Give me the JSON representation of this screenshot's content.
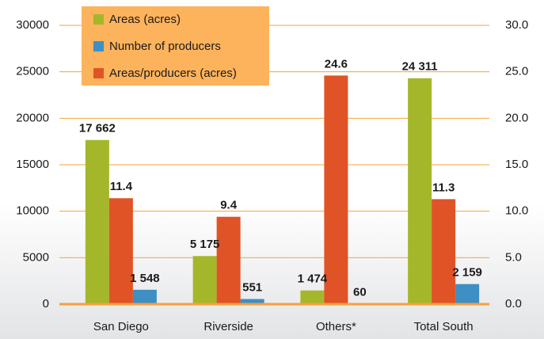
{
  "chart_data": {
    "type": "bar",
    "categories": [
      "San Diego",
      "Riverside",
      "Others*",
      "Total South"
    ],
    "series": [
      {
        "name": "Areas (acres)",
        "color": "#a4b72a",
        "values": [
          17662,
          5175,
          1474,
          24311
        ],
        "value_labels": [
          "17 662",
          "5 175",
          "1 474",
          "24 311"
        ]
      },
      {
        "name": "Number of producers",
        "color": "#3d8fc4",
        "values": [
          1548,
          551,
          60,
          2159
        ],
        "value_labels": [
          "1 548",
          "551",
          "60",
          "2 159"
        ]
      },
      {
        "name": "Areas/producers (acres)",
        "color": "#e05326",
        "values": [
          11.4,
          9.4,
          24.6,
          11.3
        ],
        "axis": "y2"
      }
    ],
    "ylim": [
      0,
      30000
    ],
    "yticks": [
      0,
      5000,
      10000,
      15000,
      20000,
      25000,
      30000
    ],
    "y2lim": [
      0,
      30
    ],
    "y2ticks": [
      {
        "value": 0,
        "label": "0.0"
      },
      {
        "value": 5,
        "label": "5.0"
      },
      {
        "value": 10,
        "label": "10.0"
      },
      {
        "value": 15,
        "label": "15.0"
      },
      {
        "value": 20,
        "label": "20.0"
      },
      {
        "value": 25,
        "label": "25.0"
      },
      {
        "value": 30,
        "label": "30.0"
      }
    ],
    "grid": true
  }
}
